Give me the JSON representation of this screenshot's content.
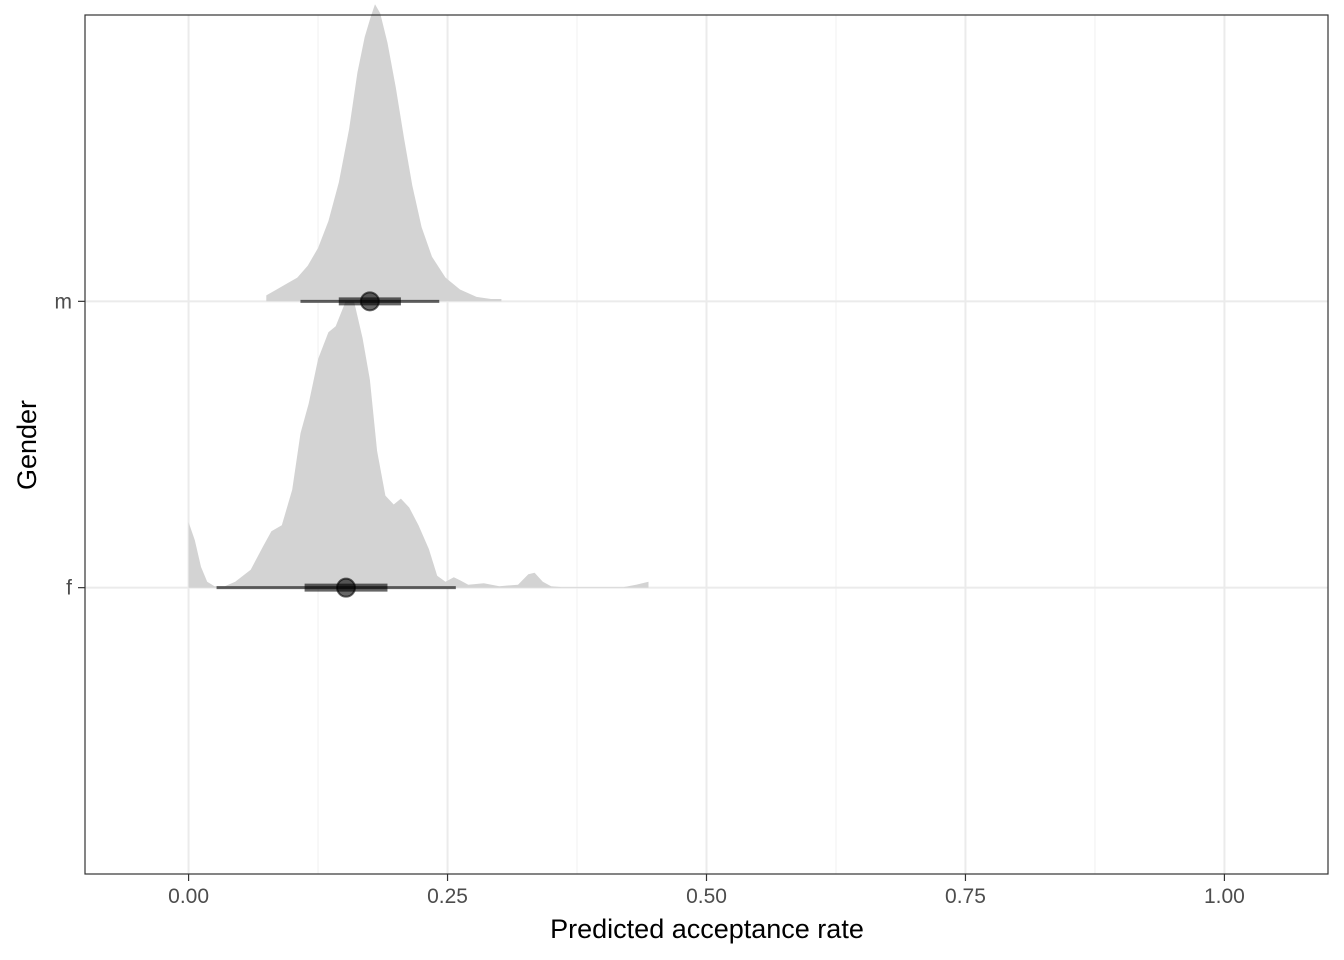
{
  "chart_data": {
    "type": "density",
    "title": "",
    "xlabel": "Predicted acceptance rate",
    "ylabel": "Gender",
    "xlim": [
      -0.1,
      1.1
    ],
    "x_ticks": [
      0.0,
      0.25,
      0.5,
      0.75,
      1.0
    ],
    "x_tick_labels": [
      "0.00",
      "0.25",
      "0.50",
      "0.75",
      "1.00"
    ],
    "categories": [
      "f",
      "m"
    ],
    "grid": true,
    "legend": "none",
    "colors": {
      "density_fill": "#d3d3d3",
      "interval": "#000000",
      "grid_major": "#ebebeb",
      "grid_minor": "#f3f3f3",
      "panel_border": "#333333"
    },
    "series": [
      {
        "category": "m",
        "point_estimate": 0.175,
        "interval_66": [
          0.145,
          0.205
        ],
        "interval_95": [
          0.108,
          0.242
        ],
        "density": [
          [
            0.075,
            0.02
          ],
          [
            0.085,
            0.04
          ],
          [
            0.095,
            0.06
          ],
          [
            0.105,
            0.08
          ],
          [
            0.115,
            0.12
          ],
          [
            0.125,
            0.18
          ],
          [
            0.135,
            0.27
          ],
          [
            0.145,
            0.4
          ],
          [
            0.155,
            0.58
          ],
          [
            0.163,
            0.77
          ],
          [
            0.17,
            0.89
          ],
          [
            0.176,
            0.96
          ],
          [
            0.18,
            1.0
          ],
          [
            0.185,
            0.97
          ],
          [
            0.192,
            0.87
          ],
          [
            0.2,
            0.72
          ],
          [
            0.208,
            0.55
          ],
          [
            0.216,
            0.39
          ],
          [
            0.225,
            0.25
          ],
          [
            0.235,
            0.15
          ],
          [
            0.248,
            0.08
          ],
          [
            0.262,
            0.04
          ],
          [
            0.278,
            0.015
          ],
          [
            0.292,
            0.008
          ],
          [
            0.302,
            0.008
          ]
        ]
      },
      {
        "category": "f",
        "point_estimate": 0.152,
        "interval_66": [
          0.112,
          0.192
        ],
        "interval_95": [
          0.027,
          0.258
        ],
        "density": [
          [
            0.0,
            0.22
          ],
          [
            0.006,
            0.16
          ],
          [
            0.012,
            0.07
          ],
          [
            0.018,
            0.02
          ],
          [
            0.025,
            0.005
          ],
          [
            0.035,
            0.005
          ],
          [
            0.045,
            0.02
          ],
          [
            0.06,
            0.06
          ],
          [
            0.072,
            0.14
          ],
          [
            0.08,
            0.19
          ],
          [
            0.09,
            0.21
          ],
          [
            0.1,
            0.33
          ],
          [
            0.108,
            0.52
          ],
          [
            0.116,
            0.62
          ],
          [
            0.125,
            0.77
          ],
          [
            0.135,
            0.86
          ],
          [
            0.142,
            0.88
          ],
          [
            0.15,
            0.95
          ],
          [
            0.155,
            1.0
          ],
          [
            0.16,
            0.96
          ],
          [
            0.168,
            0.84
          ],
          [
            0.175,
            0.7
          ],
          [
            0.182,
            0.46
          ],
          [
            0.19,
            0.31
          ],
          [
            0.198,
            0.28
          ],
          [
            0.205,
            0.3
          ],
          [
            0.213,
            0.27
          ],
          [
            0.222,
            0.21
          ],
          [
            0.232,
            0.13
          ],
          [
            0.24,
            0.04
          ],
          [
            0.248,
            0.02
          ],
          [
            0.256,
            0.035
          ],
          [
            0.262,
            0.025
          ],
          [
            0.27,
            0.01
          ],
          [
            0.285,
            0.015
          ],
          [
            0.3,
            0.005
          ],
          [
            0.318,
            0.01
          ],
          [
            0.328,
            0.045
          ],
          [
            0.334,
            0.05
          ],
          [
            0.342,
            0.02
          ],
          [
            0.35,
            0.005
          ],
          [
            0.36,
            0.002
          ],
          [
            0.42,
            0.002
          ],
          [
            0.432,
            0.01
          ],
          [
            0.444,
            0.02
          ]
        ]
      }
    ]
  }
}
